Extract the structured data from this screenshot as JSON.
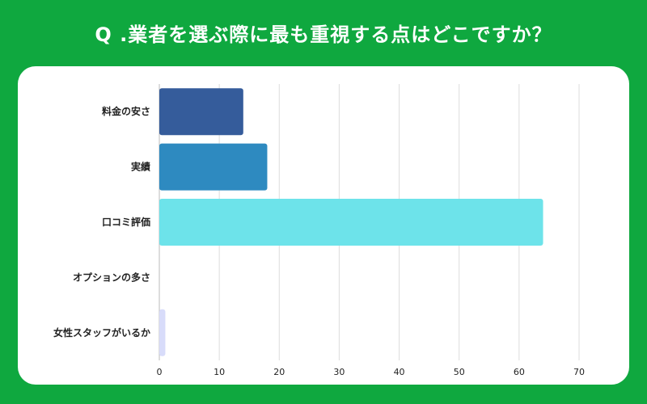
{
  "title": "Q .業者を選ぶ際に最も重視する点はどこですか？",
  "colors": {
    "background": "#0fa83f",
    "panel": "#ffffff",
    "grid": "#dddddd"
  },
  "chart_data": {
    "type": "bar",
    "orientation": "horizontal",
    "categories": [
      "料金の安さ",
      "実績",
      "口コミ評価",
      "オプションの多さ",
      "女性スタッフがいるか"
    ],
    "values": [
      14,
      18,
      64,
      0,
      1
    ],
    "colors": [
      "#355c9b",
      "#2e8ac0",
      "#6de3ea",
      "#9aa0e8",
      "#d8dcfa"
    ],
    "xlim": [
      0,
      70
    ],
    "xticks": [
      0,
      10,
      20,
      30,
      40,
      50,
      60,
      70
    ],
    "grid": true,
    "legend": "none"
  }
}
